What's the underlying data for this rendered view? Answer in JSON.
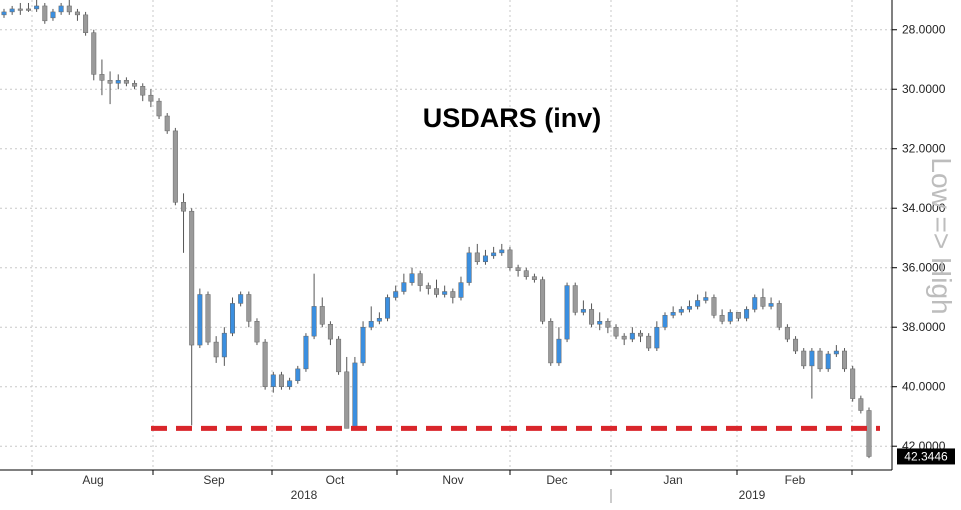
{
  "chart_data": {
    "type": "candlestick",
    "title": "USDARS (inv)",
    "axis_note": "Low => High",
    "y_axis_inverted": true,
    "ylim": [
      27,
      42.8
    ],
    "y_ticks": [
      "28.0000",
      "30.0000",
      "32.0000",
      "34.0000",
      "36.0000",
      "38.0000",
      "40.0000",
      "42.0000"
    ],
    "y_tick_values": [
      28,
      30,
      32,
      34,
      36,
      38,
      40,
      42
    ],
    "last_price_label": "42.3446",
    "last_price": 42.3446,
    "reference_line": 41.4,
    "grid": true,
    "x_month_labels": [
      "Aug",
      "Sep",
      "Oct",
      "Nov",
      "Dec",
      "Jan",
      "Feb"
    ],
    "x_year_labels": [
      "2018",
      "2019"
    ],
    "up_color": "#3b8fe0",
    "down_color": "#9a9a9a",
    "reference_line_color": "#d9262b",
    "candles": [
      [
        27.5,
        27.4,
        27.6,
        27.3
      ],
      [
        27.4,
        27.3,
        27.5,
        27.2
      ],
      [
        27.3,
        27.3,
        27.5,
        27.1
      ],
      [
        27.3,
        27.3,
        27.4,
        27.1
      ],
      [
        27.3,
        27.2,
        27.4,
        27.0
      ],
      [
        27.2,
        27.7,
        27.8,
        27.1
      ],
      [
        27.6,
        27.4,
        27.7,
        27.3
      ],
      [
        27.4,
        27.2,
        27.5,
        27.1
      ],
      [
        27.2,
        27.4,
        27.5,
        27.0
      ],
      [
        27.4,
        27.5,
        27.7,
        27.3
      ],
      [
        27.5,
        28.1,
        28.2,
        27.4
      ],
      [
        28.1,
        29.5,
        29.7,
        28.0
      ],
      [
        29.5,
        29.7,
        30.2,
        29.0
      ],
      [
        29.7,
        29.8,
        30.5,
        29.4
      ],
      [
        29.8,
        29.7,
        30.0,
        29.5
      ],
      [
        29.7,
        29.8,
        29.9,
        29.6
      ],
      [
        29.8,
        29.9,
        30.0,
        29.7
      ],
      [
        29.9,
        30.2,
        30.4,
        29.8
      ],
      [
        30.2,
        30.4,
        30.6,
        30.0
      ],
      [
        30.4,
        30.9,
        31.0,
        30.3
      ],
      [
        30.9,
        31.4,
        31.5,
        30.8
      ],
      [
        31.4,
        33.8,
        33.9,
        31.3
      ],
      [
        33.8,
        34.1,
        35.5,
        33.5
      ],
      [
        34.1,
        38.6,
        41.3,
        34.0
      ],
      [
        38.6,
        36.9,
        38.7,
        36.7
      ],
      [
        36.9,
        38.5,
        38.6,
        36.8
      ],
      [
        38.5,
        39.0,
        39.2,
        38.3
      ],
      [
        39.0,
        38.2,
        39.3,
        38.0
      ],
      [
        38.2,
        37.2,
        38.3,
        37.0
      ],
      [
        37.2,
        36.9,
        37.3,
        36.8
      ],
      [
        36.9,
        37.8,
        38.0,
        36.8
      ],
      [
        37.8,
        38.5,
        38.6,
        37.7
      ],
      [
        38.5,
        40.0,
        40.1,
        38.4
      ],
      [
        40.0,
        39.6,
        40.2,
        39.5
      ],
      [
        39.6,
        40.0,
        40.1,
        39.5
      ],
      [
        40.0,
        39.8,
        40.1,
        39.7
      ],
      [
        39.8,
        39.4,
        39.9,
        39.3
      ],
      [
        39.4,
        38.3,
        39.5,
        38.2
      ],
      [
        38.3,
        37.3,
        38.4,
        36.2
      ],
      [
        37.3,
        37.9,
        38.0,
        37.0
      ],
      [
        37.9,
        38.4,
        38.6,
        37.8
      ],
      [
        38.4,
        39.5,
        39.6,
        38.3
      ],
      [
        39.5,
        41.4,
        41.4,
        39.0
      ],
      [
        41.4,
        39.2,
        41.4,
        39.0
      ],
      [
        39.2,
        38.0,
        39.3,
        37.8
      ],
      [
        38.0,
        37.8,
        38.1,
        37.3
      ],
      [
        37.8,
        37.7,
        37.9,
        37.5
      ],
      [
        37.7,
        37.0,
        37.8,
        36.9
      ],
      [
        37.0,
        36.8,
        37.1,
        36.6
      ],
      [
        36.8,
        36.5,
        36.9,
        36.2
      ],
      [
        36.5,
        36.2,
        36.6,
        36.0
      ],
      [
        36.2,
        36.6,
        36.8,
        36.1
      ],
      [
        36.6,
        36.7,
        36.9,
        36.5
      ],
      [
        36.7,
        36.9,
        37.0,
        36.4
      ],
      [
        36.9,
        36.8,
        37.0,
        36.6
      ],
      [
        36.8,
        37.0,
        37.2,
        36.7
      ],
      [
        37.0,
        36.5,
        37.1,
        36.3
      ],
      [
        36.5,
        35.5,
        36.6,
        35.3
      ],
      [
        35.5,
        35.8,
        35.9,
        35.2
      ],
      [
        35.8,
        35.6,
        35.9,
        35.4
      ],
      [
        35.6,
        35.5,
        35.7,
        35.3
      ],
      [
        35.5,
        35.4,
        35.6,
        35.2
      ],
      [
        35.4,
        36.0,
        36.1,
        35.3
      ],
      [
        36.0,
        36.1,
        36.3,
        35.9
      ],
      [
        36.1,
        36.3,
        36.4,
        36.0
      ],
      [
        36.3,
        36.4,
        36.5,
        36.2
      ],
      [
        36.4,
        37.8,
        37.9,
        36.3
      ],
      [
        37.8,
        39.2,
        39.3,
        37.7
      ],
      [
        39.2,
        38.4,
        39.3,
        38.0
      ],
      [
        38.4,
        36.6,
        38.5,
        36.5
      ],
      [
        36.6,
        37.5,
        37.6,
        36.5
      ],
      [
        37.5,
        37.4,
        37.6,
        37.1
      ],
      [
        37.4,
        37.9,
        38.0,
        37.2
      ],
      [
        37.9,
        37.8,
        38.1,
        37.5
      ],
      [
        37.8,
        38.0,
        38.2,
        37.7
      ],
      [
        38.0,
        38.3,
        38.4,
        37.9
      ],
      [
        38.3,
        38.4,
        38.6,
        38.2
      ],
      [
        38.4,
        38.2,
        38.5,
        38.0
      ],
      [
        38.2,
        38.3,
        38.5,
        38.1
      ],
      [
        38.3,
        38.7,
        38.8,
        38.2
      ],
      [
        38.7,
        38.0,
        38.8,
        37.8
      ],
      [
        38.0,
        37.6,
        38.1,
        37.5
      ],
      [
        37.6,
        37.5,
        37.7,
        37.3
      ],
      [
        37.5,
        37.4,
        37.6,
        37.3
      ],
      [
        37.4,
        37.3,
        37.5,
        37.1
      ],
      [
        37.3,
        37.1,
        37.4,
        36.9
      ],
      [
        37.1,
        37.0,
        37.2,
        36.8
      ],
      [
        37.0,
        37.6,
        37.7,
        36.9
      ],
      [
        37.6,
        37.8,
        37.9,
        37.4
      ],
      [
        37.8,
        37.5,
        37.9,
        37.4
      ],
      [
        37.5,
        37.7,
        37.8,
        37.5
      ],
      [
        37.7,
        37.4,
        37.8,
        37.3
      ],
      [
        37.4,
        37.0,
        37.5,
        36.9
      ],
      [
        37.0,
        37.3,
        37.4,
        36.7
      ],
      [
        37.3,
        37.2,
        37.4,
        37.0
      ],
      [
        37.2,
        38.0,
        38.1,
        37.1
      ],
      [
        38.0,
        38.4,
        38.5,
        37.9
      ],
      [
        38.4,
        38.8,
        38.9,
        38.3
      ],
      [
        38.8,
        39.3,
        39.4,
        38.7
      ],
      [
        39.3,
        38.8,
        40.4,
        38.7
      ],
      [
        38.8,
        39.4,
        39.5,
        38.7
      ],
      [
        39.4,
        38.9,
        39.5,
        38.8
      ],
      [
        38.9,
        38.8,
        39.0,
        38.6
      ],
      [
        38.8,
        39.4,
        39.5,
        38.7
      ],
      [
        39.4,
        40.4,
        40.5,
        39.3
      ],
      [
        40.4,
        40.8,
        40.9,
        40.3
      ],
      [
        40.8,
        42.3446,
        42.4,
        40.7
      ]
    ]
  }
}
